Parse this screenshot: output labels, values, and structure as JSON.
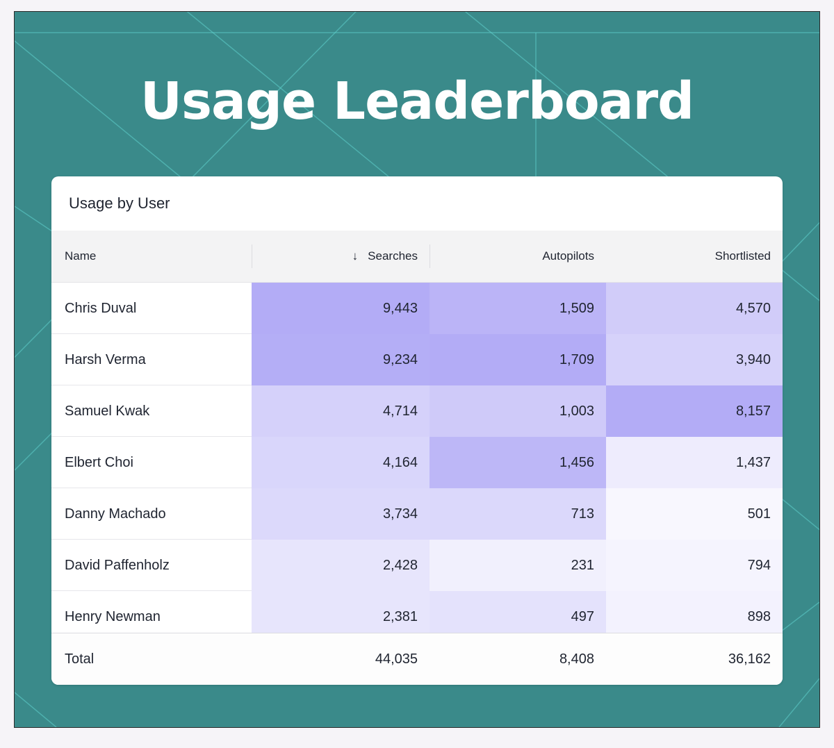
{
  "headline": "Usage Leaderboard",
  "card": {
    "title": "Usage by User",
    "columns": {
      "name": "Name",
      "searches": "Searches",
      "autopilots": "Autopilots",
      "shortlisted": "Shortlisted"
    },
    "sort": {
      "column": "Searches",
      "direction": "descending",
      "icon": "arrow-down-icon"
    },
    "rows": [
      {
        "name": "Chris Duval",
        "searches": "9,443",
        "autopilots": "1,509",
        "shortlisted": "4,570"
      },
      {
        "name": "Harsh Verma",
        "searches": "9,234",
        "autopilots": "1,709",
        "shortlisted": "3,940"
      },
      {
        "name": "Samuel Kwak",
        "searches": "4,714",
        "autopilots": "1,003",
        "shortlisted": "8,157"
      },
      {
        "name": "Elbert Choi",
        "searches": "4,164",
        "autopilots": "1,456",
        "shortlisted": "1,437"
      },
      {
        "name": "Danny Machado",
        "searches": "3,734",
        "autopilots": "713",
        "shortlisted": "501"
      },
      {
        "name": "David Paffenholz",
        "searches": "2,428",
        "autopilots": "231",
        "shortlisted": "794"
      },
      {
        "name": "Henry Newman",
        "searches": "2,381",
        "autopilots": "497",
        "shortlisted": "898"
      }
    ],
    "total": {
      "label": "Total",
      "searches": "44,035",
      "autopilots": "8,408",
      "shortlisted": "36,162"
    }
  },
  "colors": {
    "background": "#3a8a8a",
    "background_lines": "#5fcfcc",
    "heat_max": "#b3acf6",
    "heat_min": "#ffffff",
    "text": "#1f2430"
  }
}
